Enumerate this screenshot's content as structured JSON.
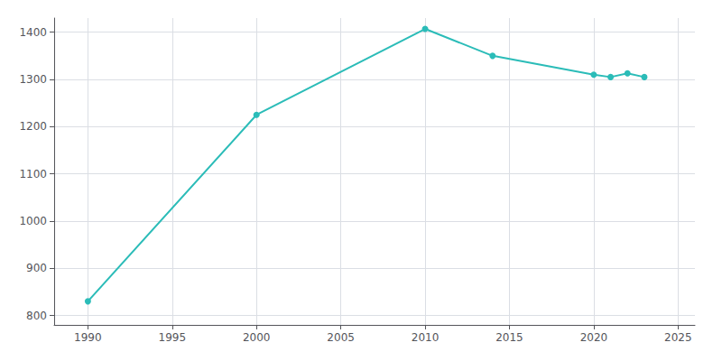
{
  "chart_data": {
    "type": "line",
    "x": [
      1990,
      2000,
      2010,
      2014,
      2020,
      2021,
      2022,
      2023
    ],
    "values": [
      830,
      1225,
      1407,
      1350,
      1310,
      1305,
      1313,
      1305
    ],
    "color": "#2bbcb8",
    "marker": "circle",
    "xlim": [
      1988,
      2026
    ],
    "ylim": [
      780,
      1430
    ],
    "xticks": [
      1990,
      1995,
      2000,
      2005,
      2010,
      2015,
      2020,
      2025
    ],
    "yticks": [
      800,
      900,
      1000,
      1100,
      1200,
      1300,
      1400
    ],
    "grid": true
  }
}
